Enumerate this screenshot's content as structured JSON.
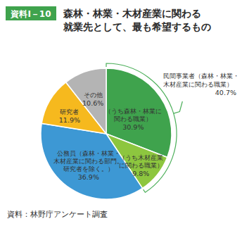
{
  "chart_data": {
    "type": "pie",
    "figure_label": "資料Ⅰ－10",
    "title": "森林・林業・木材産業に関わる\n就業先として、最も希望するもの",
    "categories": [
      "（うち森林・林業に\n関わる職業）",
      "（うち木材産業\nに関わる職業）",
      "公務員（森林・林業・\n木材産業に関わる部門。\n研究者を除く。）",
      "研究者",
      "その他"
    ],
    "values": [
      30.9,
      9.8,
      36.9,
      11.9,
      10.6
    ],
    "value_labels": [
      "30.9%",
      "9.8%",
      "36.9%",
      "11.9%",
      "10.6%"
    ],
    "colors": [
      "#3fa34d",
      "#8dc63f",
      "#3d98d4",
      "#f6b91e",
      "#b4b4b4"
    ],
    "data_labels": true,
    "annotations": [
      {
        "text": "民間事業者（森林・林業・\n木材産業に関わる職業）",
        "value": 40.7,
        "label": "40.7%"
      }
    ],
    "source": "資料：林野庁アンケート調査"
  }
}
